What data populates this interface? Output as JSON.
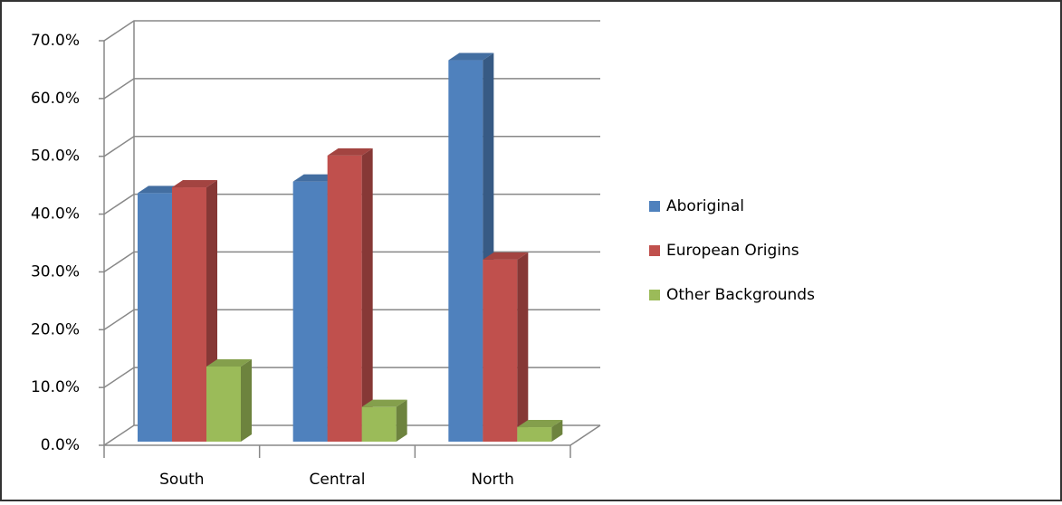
{
  "chart_data": {
    "type": "bar3d",
    "categories": [
      "South",
      "Central",
      "North"
    ],
    "series": [
      {
        "name": "Aboriginal",
        "color": "#4f81bd",
        "values": [
          43,
          45,
          66
        ]
      },
      {
        "name": "European Origins",
        "color": "#c0504d",
        "values": [
          44,
          49.5,
          31.5
        ]
      },
      {
        "name": "Other Backgrounds",
        "color": "#9bbb59",
        "values": [
          13,
          6,
          2.5
        ]
      }
    ],
    "ylim": [
      0,
      70
    ],
    "yticks": [
      {
        "value": 0,
        "label": "0.0%"
      },
      {
        "value": 10,
        "label": "10.0%"
      },
      {
        "value": 20,
        "label": "20.0%"
      },
      {
        "value": 30,
        "label": "30.0%"
      },
      {
        "value": 40,
        "label": "40.0%"
      },
      {
        "value": 50,
        "label": "50.0%"
      },
      {
        "value": 60,
        "label": "60.0%"
      },
      {
        "value": 70,
        "label": "70.0%"
      }
    ],
    "grid": true,
    "legend": "right"
  }
}
